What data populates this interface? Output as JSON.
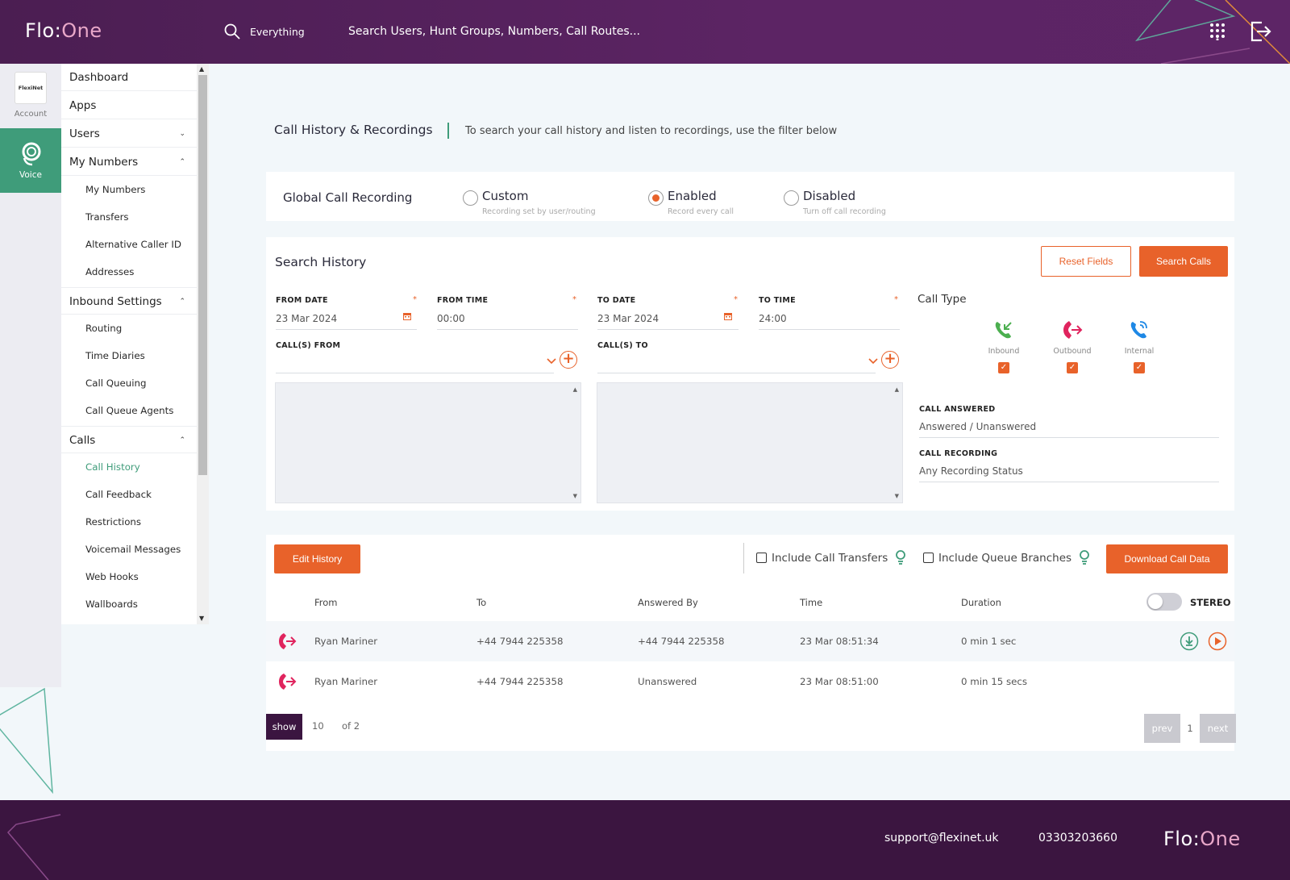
{
  "header": {
    "logo_left": "Flo",
    "logo_colon": ":",
    "logo_right": "One",
    "search_scope": "Everything",
    "search_placeholder": "Search Users, Hunt Groups, Numbers, Call Routes..."
  },
  "rail": {
    "account_logo_text": "FlexiNet",
    "account_label": "Account",
    "voice_label": "Voice"
  },
  "nav": {
    "dashboard": "Dashboard",
    "apps": "Apps",
    "users": "Users",
    "my_numbers": "My Numbers",
    "my_numbers_items": [
      "My Numbers",
      "Transfers",
      "Alternative Caller ID",
      "Addresses"
    ],
    "inbound_settings": "Inbound Settings",
    "inbound_items": [
      "Routing",
      "Time Diaries",
      "Call Queuing",
      "Call Queue Agents"
    ],
    "calls": "Calls",
    "calls_items": [
      "Call History",
      "Call Feedback",
      "Restrictions",
      "Voicemail Messages",
      "Web Hooks",
      "Wallboards"
    ]
  },
  "page": {
    "title": "Call History & Recordings",
    "description": "To search your call history and listen to recordings, use the filter below"
  },
  "gcr": {
    "label": "Global Call Recording",
    "options": [
      {
        "label": "Custom",
        "hint": "Recording set by user/routing",
        "selected": false
      },
      {
        "label": "Enabled",
        "hint": "Record every call",
        "selected": true
      },
      {
        "label": "Disabled",
        "hint": "Turn off call recording",
        "selected": false
      }
    ]
  },
  "search": {
    "title": "Search History",
    "reset_label": "Reset Fields",
    "search_label": "Search Calls",
    "from_date_label": "FROM DATE",
    "from_date": "23 Mar 2024",
    "from_time_label": "FROM TIME",
    "from_time": "00:00",
    "to_date_label": "TO DATE",
    "to_date": "23 Mar 2024",
    "to_time_label": "TO TIME",
    "to_time": "24:00",
    "calls_from_label": "CALL(S) FROM",
    "calls_to_label": "CALL(S) TO",
    "required_mark": "*",
    "call_type_label": "Call Type",
    "call_types": [
      "Inbound",
      "Outbound",
      "Internal"
    ],
    "call_answered_label": "CALL ANSWERED",
    "call_answered_value": "Answered / Unanswered",
    "call_recording_label": "CALL RECORDING",
    "call_recording_value": "Any Recording Status"
  },
  "table": {
    "edit_history_label": "Edit History",
    "include_transfers_label": "Include Call Transfers",
    "include_queue_label": "Include Queue Branches",
    "download_label": "Download Call Data",
    "columns": [
      "From",
      "To",
      "Answered By",
      "Time",
      "Duration"
    ],
    "stereo_label": "STEREO",
    "rows": [
      {
        "from": "Ryan Mariner",
        "to": "+44 7944 225358",
        "answered_by": "+44 7944 225358",
        "time": "23 Mar 08:51:34",
        "duration": "0 min 1 sec"
      },
      {
        "from": "Ryan Mariner",
        "to": "+44 7944 225358",
        "answered_by": "Unanswered",
        "time": "23 Mar 08:51:00",
        "duration": "0 min 15 secs"
      }
    ],
    "show_label": "show",
    "show_count": "10",
    "of_pages": "of 2",
    "prev_label": "prev",
    "page_number": "1",
    "next_label": "next"
  },
  "footer": {
    "email": "support@flexinet.uk",
    "phone": "03303203660"
  },
  "colors": {
    "header_purple": "#5c2464",
    "footer_purple": "#3b1540",
    "accent_orange": "#e8622a",
    "voice_green": "#3f9c7a"
  },
  "icons": {
    "search": "search-icon",
    "dialpad": "dialpad-icon",
    "logout": "logout-icon",
    "voice": "headset-icon",
    "calendar": "calendar-icon",
    "inbound": "inbound-call-icon",
    "outbound": "outbound-call-icon",
    "internal": "internal-call-icon",
    "bulb": "lightbulb-icon",
    "download": "download-icon",
    "play": "play-icon"
  }
}
